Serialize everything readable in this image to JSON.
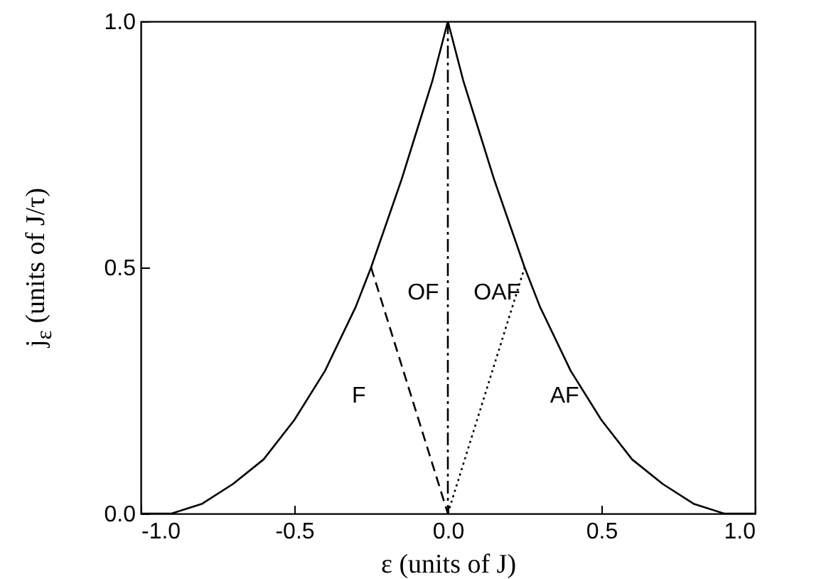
{
  "chart_data": {
    "type": "line",
    "xlabel": "ε  (units of J)",
    "ylabel": "j$_{ε}$  (units of J/τ)",
    "xlim": [
      -1,
      1
    ],
    "ylim": [
      0,
      1
    ],
    "xticks": [
      {
        "value": -1,
        "label": "-1.0"
      },
      {
        "value": -0.5,
        "label": "-0.5"
      },
      {
        "value": 0,
        "label": "0.0"
      },
      {
        "value": 0.5,
        "label": "0.5"
      },
      {
        "value": 1,
        "label": "1.0"
      }
    ],
    "yticks": [
      {
        "value": 0,
        "label": "0.0"
      },
      {
        "value": 0.5,
        "label": "0.5"
      },
      {
        "value": 1,
        "label": "1.0"
      }
    ],
    "marker": "none",
    "series": [
      {
        "color": "#000000",
        "line_style": "solid",
        "x": [
          -1,
          -0.9,
          -0.8,
          -0.7,
          -0.6,
          -0.5,
          -0.4,
          -0.3,
          -0.25,
          -0.2,
          -0.15,
          -0.1,
          -0.05,
          0,
          0.05,
          0.1,
          0.15,
          0.2,
          0.25,
          0.3,
          0.4,
          0.5,
          0.6,
          0.7,
          0.8,
          0.9,
          1
        ],
        "values": [
          0,
          0,
          0.02,
          0.06,
          0.11,
          0.19,
          0.29,
          0.42,
          0.5,
          0.59,
          0.68,
          0.78,
          0.88,
          1,
          0.88,
          0.78,
          0.68,
          0.59,
          0.5,
          0.42,
          0.29,
          0.19,
          0.11,
          0.06,
          0.02,
          0,
          0
        ]
      },
      {
        "color": "#000000",
        "line_style": "dashed",
        "x": [
          -0.25,
          0
        ],
        "values": [
          0.5,
          0
        ]
      },
      {
        "color": "#000000",
        "line_style": "dotted",
        "x": [
          0,
          0.25
        ],
        "values": [
          0,
          0.5
        ]
      }
    ],
    "ref_lines": [
      {
        "axis": "x",
        "value": 0,
        "color": "#000000",
        "line_style": "dashdot"
      }
    ],
    "annotations": [
      "F",
      "OF",
      "OAF",
      "AF"
    ]
  }
}
